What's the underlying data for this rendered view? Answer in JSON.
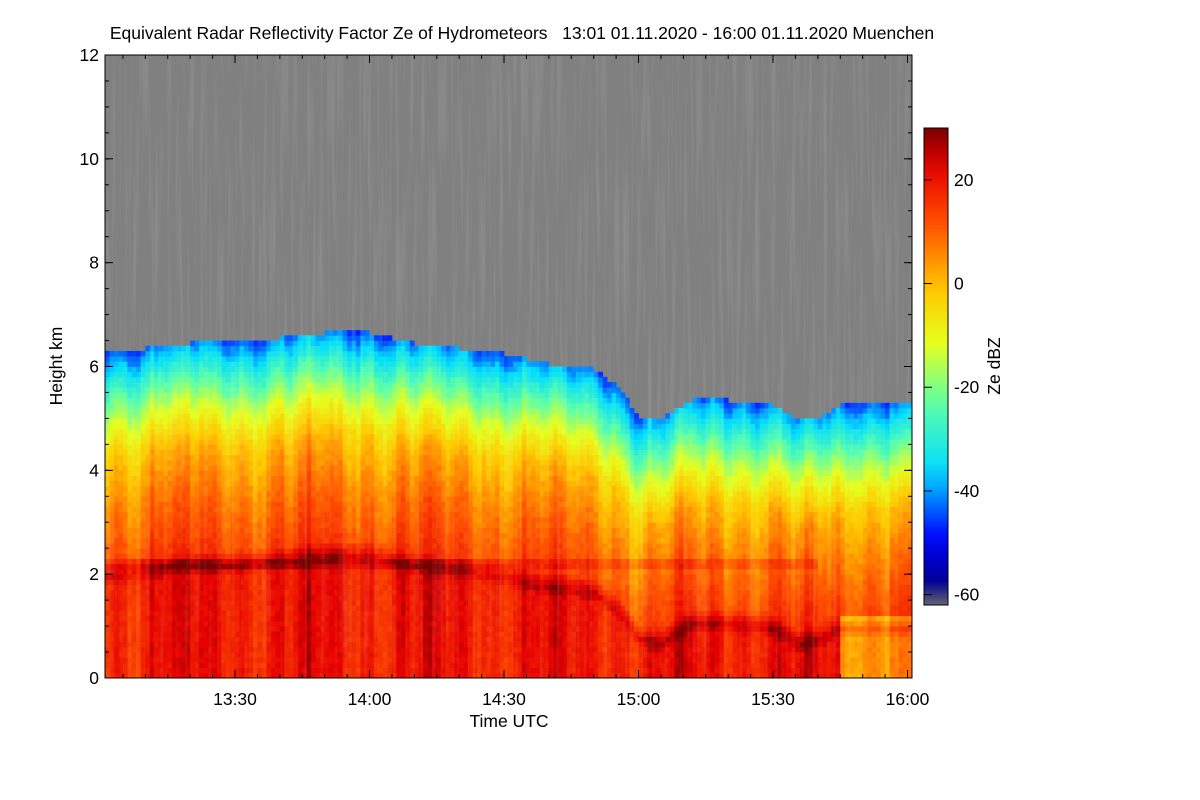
{
  "chart_data": {
    "type": "heatmap",
    "title": "Equivalent Radar Reflectivity Factor Ze of Hydrometeors   13:01 01.11.2020 - 16:00 01.11.2020 Muenchen",
    "xlabel": "Time UTC",
    "ylabel": "Height km",
    "colorbar_label": "Ze dBZ",
    "x_range_minutes": [
      781,
      961
    ],
    "x_ticks": [
      {
        "minute": 810,
        "label": "13:30"
      },
      {
        "minute": 840,
        "label": "14:00"
      },
      {
        "minute": 870,
        "label": "14:30"
      },
      {
        "minute": 900,
        "label": "15:00"
      },
      {
        "minute": 930,
        "label": "15:30"
      },
      {
        "minute": 960,
        "label": "16:00"
      }
    ],
    "ylim": [
      0,
      12
    ],
    "y_ticks": [
      0,
      2,
      4,
      6,
      8,
      10,
      12
    ],
    "clim": [
      -62,
      30
    ],
    "c_ticks": [
      20,
      0,
      -20,
      -40,
      -60
    ],
    "no_signal_color": "#808080",
    "echo_top_km": [
      {
        "minute": 781,
        "km": 6.2
      },
      {
        "minute": 790,
        "km": 6.3
      },
      {
        "minute": 800,
        "km": 6.4
      },
      {
        "minute": 810,
        "km": 6.4
      },
      {
        "minute": 820,
        "km": 6.5
      },
      {
        "minute": 830,
        "km": 6.6
      },
      {
        "minute": 840,
        "km": 6.6
      },
      {
        "minute": 850,
        "km": 6.4
      },
      {
        "minute": 860,
        "km": 6.3
      },
      {
        "minute": 870,
        "km": 6.2
      },
      {
        "minute": 880,
        "km": 6.0
      },
      {
        "minute": 890,
        "km": 5.9
      },
      {
        "minute": 896,
        "km": 5.5
      },
      {
        "minute": 900,
        "km": 5.0
      },
      {
        "minute": 905,
        "km": 4.9
      },
      {
        "minute": 908,
        "km": 5.1
      },
      {
        "minute": 912,
        "km": 5.3
      },
      {
        "minute": 920,
        "km": 5.3
      },
      {
        "minute": 930,
        "km": 5.2
      },
      {
        "minute": 936,
        "km": 4.9
      },
      {
        "minute": 941,
        "km": 5.0
      },
      {
        "minute": 945,
        "km": 5.2
      },
      {
        "minute": 950,
        "km": 5.2
      },
      {
        "minute": 955,
        "km": 5.2
      },
      {
        "minute": 961,
        "km": 5.2
      }
    ],
    "bright_band_km": 2.15,
    "profile_km_vs_dbz": [
      {
        "km": 0,
        "dbz": 20
      },
      {
        "km": 2.0,
        "dbz": 20
      },
      {
        "km": 2.2,
        "dbz": 26
      },
      {
        "km": 2.5,
        "dbz": 14
      },
      {
        "km": 3.5,
        "dbz": 8
      },
      {
        "km": 4.5,
        "dbz": 0
      },
      {
        "km": 5.2,
        "dbz": -12
      },
      {
        "km": 5.8,
        "dbz": -25
      },
      {
        "km": 6.5,
        "dbz": -42
      }
    ]
  }
}
